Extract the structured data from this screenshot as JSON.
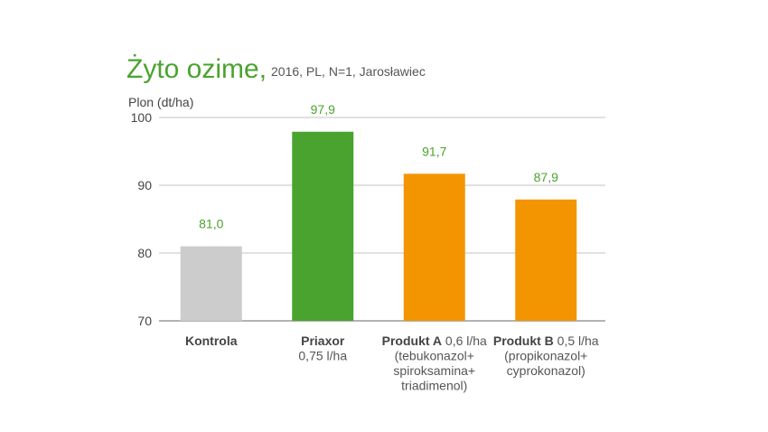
{
  "chart_data": {
    "type": "bar",
    "title": "Żyto ozime,",
    "subtitle": "2016, PL, N=1, Jarosławiec",
    "ylabel": "Plon (dt/ha)",
    "xlabel": "",
    "ylim": [
      70,
      100
    ],
    "yticks": [
      70,
      80,
      90,
      100
    ],
    "grid": true,
    "legend": "none",
    "categories": [
      "Kontrola",
      "Priaxor",
      "Produkt A",
      "Produkt B"
    ],
    "category_details": [
      [
        ""
      ],
      [
        "0,75 l/ha"
      ],
      [
        "0,6 l/ha",
        "(tebukonazol+",
        "spiroksamina+",
        "triadimenol)"
      ],
      [
        "0,5 l/ha",
        "(propikonazol+",
        "cyprokonazol)"
      ]
    ],
    "values": [
      81.0,
      97.9,
      91.7,
      87.9
    ],
    "value_labels": [
      "81,0",
      "97,9",
      "91,7",
      "87,9"
    ],
    "colors": [
      "#cccccc",
      "#4aa32f",
      "#f39500",
      "#f39500"
    ],
    "value_label_color": "#4aa32f",
    "category_label_colors": [
      "#444444",
      "#4aa32f",
      "#444444",
      "#444444"
    ]
  }
}
